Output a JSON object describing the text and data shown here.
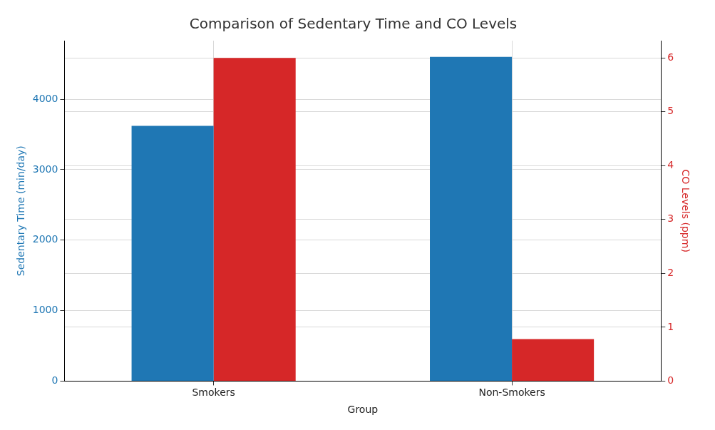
{
  "chart_data": {
    "type": "bar",
    "title": "Comparison of Sedentary Time and CO Levels",
    "xlabel": "Group",
    "ylabel": "Sedentary Time (min/day)",
    "y2label": "CO Levels (ppm)",
    "categories": [
      "Smokers",
      "Non-Smokers"
    ],
    "series": [
      {
        "color": "#1f77b4",
        "values": [
          3620,
          4600
        ]
      },
      {
        "color": "#d62728",
        "values": [
          6.0,
          0.78
        ],
        "axis": "y2"
      }
    ],
    "ylim": [
      0,
      4830
    ],
    "yticks": [
      0,
      1000,
      2000,
      3000,
      4000
    ],
    "y2lim": [
      0,
      6.32
    ],
    "y2ticks": [
      0,
      1,
      2,
      3,
      4,
      5,
      6
    ],
    "grid": true,
    "legend": false
  }
}
